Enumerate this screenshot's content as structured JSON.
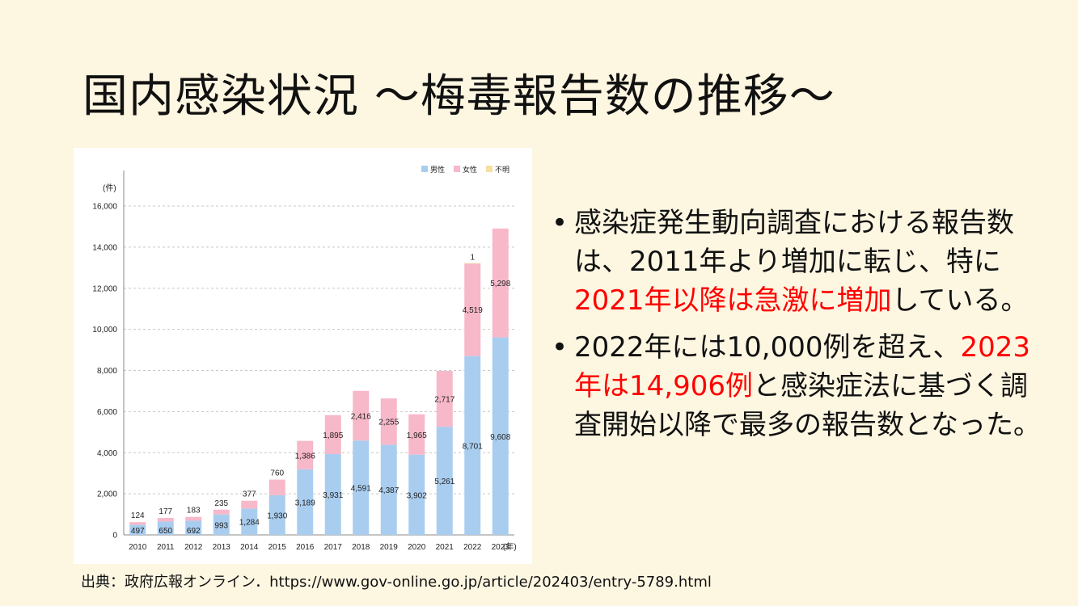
{
  "title": "国内感染状況 ～梅毒報告数の推移～",
  "chart_data": {
    "type": "bar",
    "stacked": true,
    "y_unit_label": "(件)",
    "x_unit_label": "(年)",
    "ylim": [
      0,
      16000
    ],
    "y_ticks": [
      0,
      2000,
      4000,
      6000,
      8000,
      10000,
      12000,
      14000,
      16000
    ],
    "y_tick_labels": [
      "0",
      "2,000",
      "4,000",
      "6,000",
      "8,000",
      "10,000",
      "12,000",
      "14,000",
      "16,000"
    ],
    "categories": [
      "2010",
      "2011",
      "2012",
      "2013",
      "2014",
      "2015",
      "2016",
      "2017",
      "2018",
      "2019",
      "2020",
      "2021",
      "2022",
      "2023"
    ],
    "legend_position": "top-right",
    "grid": true,
    "series": [
      {
        "name": "男性",
        "color": "#a9cdef",
        "values": [
          497,
          650,
          692,
          993,
          1284,
          1930,
          3189,
          3931,
          4591,
          4387,
          3902,
          5261,
          8701,
          9608
        ],
        "labels": [
          "497",
          "650",
          "692",
          "993",
          "1,284",
          "1,930",
          "3,189",
          "3,931",
          "4,591",
          "4,387",
          "3,902",
          "5,261",
          "8,701",
          "9,608"
        ]
      },
      {
        "name": "女性",
        "color": "#f7b8c9",
        "values": [
          124,
          177,
          183,
          235,
          377,
          760,
          1386,
          1895,
          2416,
          2255,
          1965,
          2717,
          4519,
          5298
        ],
        "labels": [
          "124",
          "177",
          "183",
          "235",
          "377",
          "760",
          "1,386",
          "1,895",
          "2,416",
          "2,255",
          "1,965",
          "2,717",
          "4,519",
          "5,298"
        ]
      },
      {
        "name": "不明",
        "color": "#f6dfa4",
        "values": [
          0,
          0,
          0,
          0,
          0,
          0,
          0,
          0,
          0,
          0,
          0,
          0,
          1,
          0
        ],
        "labels": [
          "",
          "",
          "",
          "",
          "",
          "",
          "",
          "",
          "",
          "",
          "",
          "",
          "1",
          ""
        ]
      }
    ]
  },
  "bullets": [
    {
      "segments": [
        {
          "text": "感染症発生動向調査における報告数は、2011年より増加に転じ、特に",
          "red": false
        },
        {
          "text": "2021年以降は急激に増加",
          "red": true
        },
        {
          "text": "している。",
          "red": false
        }
      ]
    },
    {
      "segments": [
        {
          "text": "2022年には10,000例を超え、",
          "red": false
        },
        {
          "text": "2023年は14,906例",
          "red": true
        },
        {
          "text": "と感染症法に基づく調査開始以降で最多の報告数となった。",
          "red": false
        }
      ]
    }
  ],
  "bullet_symbol": "•",
  "source": "出典：政府広報オンライン．https://www.gov-online.go.jp/article/202403/entry-5789.html"
}
